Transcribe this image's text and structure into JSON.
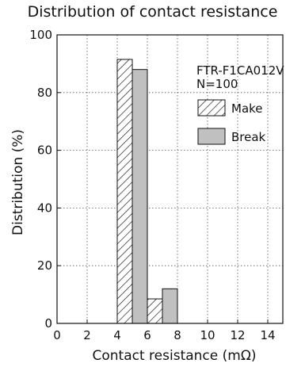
{
  "chart_data": {
    "type": "bar",
    "title": "Distribution of contact resistance",
    "xlabel": "Contact resistance (mΩ)",
    "ylabel": "Distribution (%)",
    "xlim": [
      0,
      15
    ],
    "ylim": [
      0,
      100
    ],
    "xticks": [
      0,
      2,
      4,
      6,
      8,
      10,
      12,
      14
    ],
    "yticks": [
      0,
      20,
      40,
      60,
      80,
      100
    ],
    "grid": true,
    "bin_width": 2,
    "bins": [
      4,
      6
    ],
    "series": [
      {
        "name": "Make",
        "values": [
          91.5,
          8.5
        ],
        "pattern": "hatched",
        "color": "#ffffff"
      },
      {
        "name": "Break",
        "values": [
          88,
          12
        ],
        "pattern": "solid",
        "color": "#c0c0c0"
      }
    ],
    "legend": {
      "position": "top-right",
      "header": [
        "FTR-F1CA012V",
        "N=100"
      ]
    }
  }
}
